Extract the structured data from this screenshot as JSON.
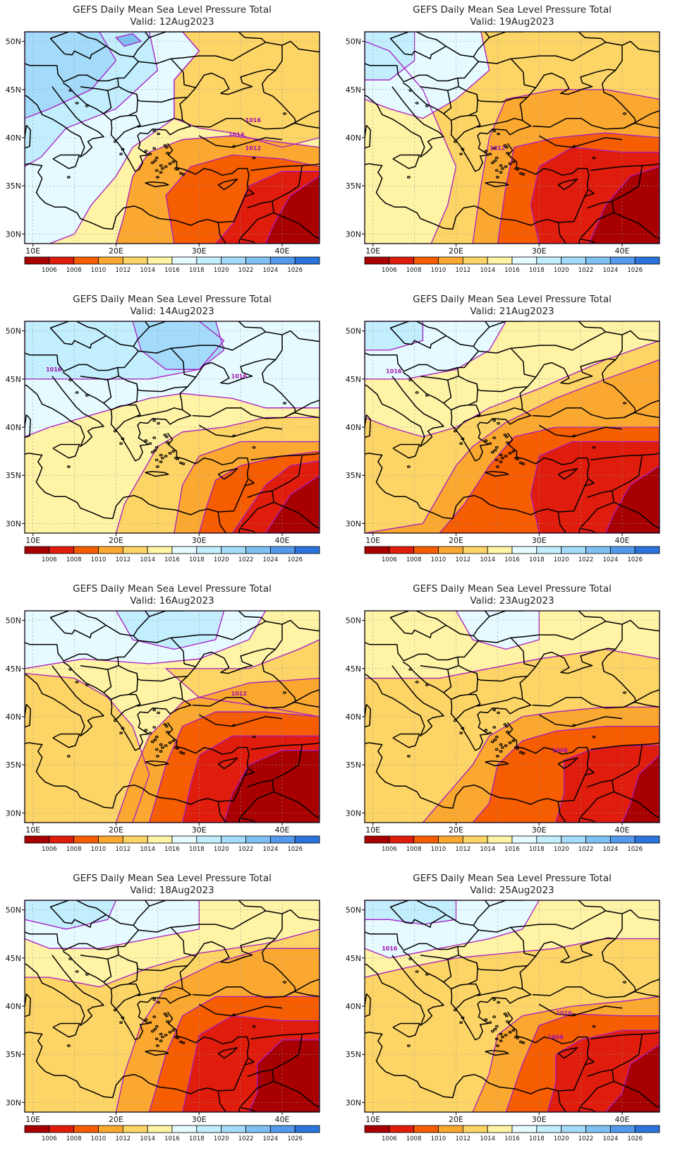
{
  "title": "GEFS Daily Mean Sea Level Pressure Total",
  "colors": {
    "bins": [
      "#a80000",
      "#e01c0c",
      "#f65c00",
      "#fba830",
      "#fdd466",
      "#fff3a6",
      "#e6fbff",
      "#c2eefd",
      "#a5dbfa",
      "#7ec0f2",
      "#5599ec",
      "#2c74dd"
    ],
    "contour": "#a61bc4",
    "coast": "#000000",
    "grid": "#9a9a9a"
  },
  "axes": {
    "lon_ticks": [
      "10E",
      "20E",
      "30E",
      "40E"
    ],
    "lat_ticks": [
      "50N",
      "45N",
      "40N",
      "35N",
      "30N"
    ]
  },
  "colorbar": {
    "labels": [
      "1006",
      "1008",
      "1010",
      "1012",
      "1014",
      "1016",
      "1018",
      "1020",
      "1022",
      "1024",
      "1026"
    ]
  },
  "panels": [
    {
      "valid": "Valid: 12Aug2023",
      "contour_labels": [
        "1016",
        "1014",
        "1012"
      ]
    },
    {
      "valid": "Valid: 19Aug2023",
      "contour_labels": [
        "1012"
      ]
    },
    {
      "valid": "Valid: 14Aug2023",
      "contour_labels": [
        "1016",
        "1016"
      ]
    },
    {
      "valid": "Valid: 21Aug2023",
      "contour_labels": [
        "1016"
      ]
    },
    {
      "valid": "Valid: 16Aug2023",
      "contour_labels": [
        "1012"
      ]
    },
    {
      "valid": "Valid: 23Aug2023",
      "contour_labels": [
        "1008"
      ]
    },
    {
      "valid": "Valid: 18Aug2023",
      "contour_labels": []
    },
    {
      "valid": "Valid: 25Aug2023",
      "contour_labels": [
        "1016",
        "1010",
        "1008"
      ]
    }
  ]
}
